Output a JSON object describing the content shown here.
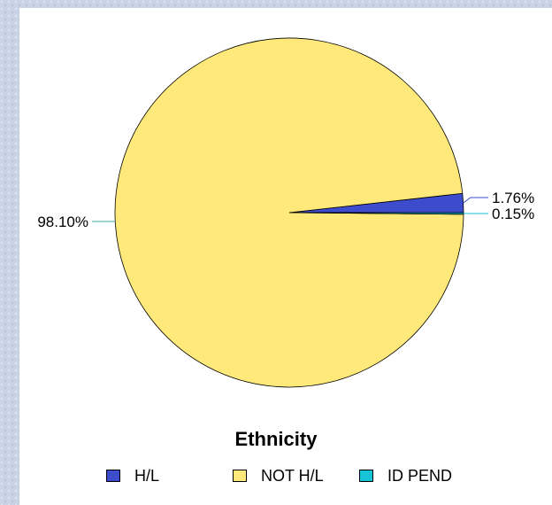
{
  "chart_data": {
    "type": "pie",
    "title": "Ethnicity",
    "slices": [
      {
        "name": "H/L",
        "value": 1.76,
        "label": "1.76%",
        "color": "#3d4ccc"
      },
      {
        "name": "NOT H/L",
        "value": 98.1,
        "label": "98.10%",
        "color": "#ffe97a"
      },
      {
        "name": "ID PEND",
        "value": 0.15,
        "label": "0.15%",
        "color": "#17c3d6"
      }
    ],
    "legend_position": "bottom"
  }
}
